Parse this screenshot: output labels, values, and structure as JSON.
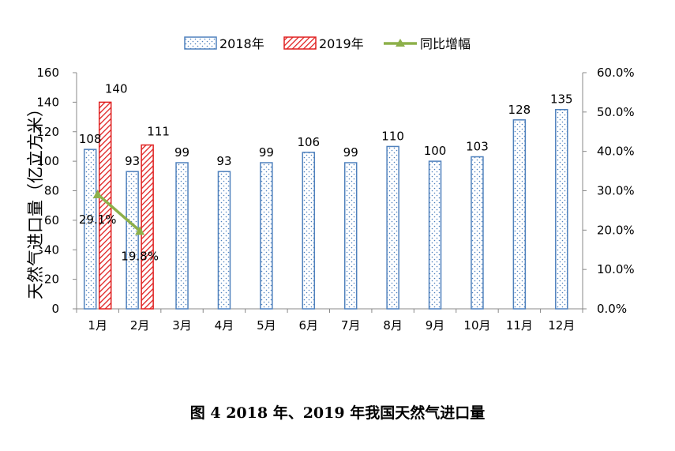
{
  "caption": "图 4 2018 年、2019 年我国天然气进口量",
  "colors": {
    "s2018_stroke": "#4f81bd",
    "s2019_stroke": "#e02020",
    "growth_line": "#8db04a",
    "axis": "#888888"
  },
  "chart_data": {
    "type": "bar",
    "title": "",
    "ylabel": "天然气进口量（亿立方米）",
    "y2label": "",
    "ylim": [
      0,
      160
    ],
    "yticks": [
      "0",
      "20",
      "40",
      "60",
      "80",
      "100",
      "120",
      "140",
      "160"
    ],
    "y2lim": [
      0,
      60
    ],
    "y2ticks": [
      "0.0%",
      "10.0%",
      "20.0%",
      "30.0%",
      "40.0%",
      "50.0%",
      "60.0%"
    ],
    "categories": [
      "1月",
      "2月",
      "3月",
      "4月",
      "5月",
      "6月",
      "7月",
      "8月",
      "9月",
      "10月",
      "11月",
      "12月"
    ],
    "series": [
      {
        "name": "2018年",
        "kind": "bar",
        "pattern": "dots",
        "values": [
          108,
          93,
          99,
          93,
          99,
          106,
          99,
          110,
          100,
          103,
          128,
          135
        ]
      },
      {
        "name": "2019年",
        "kind": "bar",
        "pattern": "hatch",
        "values": [
          140,
          111,
          null,
          null,
          null,
          null,
          null,
          null,
          null,
          null,
          null,
          null
        ]
      },
      {
        "name": "同比增幅",
        "kind": "line",
        "axis": "secondary",
        "values": [
          29.1,
          19.8,
          null,
          null,
          null,
          null,
          null,
          null,
          null,
          null,
          null,
          null
        ],
        "labels": [
          "29.1%",
          "19.8%"
        ]
      }
    ],
    "legend_position": "top",
    "grid": false
  }
}
